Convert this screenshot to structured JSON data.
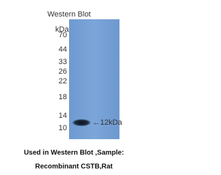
{
  "blot": {
    "title": "Western Blot",
    "unit": "kDa",
    "markers": [
      "70",
      "44",
      "33",
      "26",
      "22",
      "18",
      "14",
      "10"
    ],
    "band_label": "←12kDa"
  },
  "caption": {
    "line1": "Used in Western Blot ,Sample:",
    "line2": "Recombinant CSTB,Rat"
  }
}
